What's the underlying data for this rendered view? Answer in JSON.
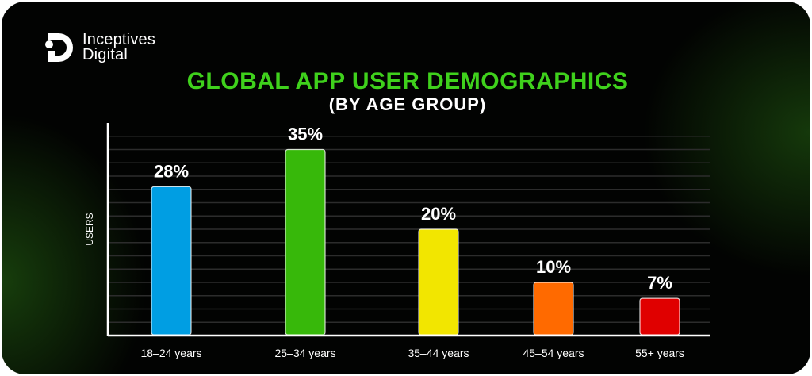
{
  "brand": {
    "logo_text_line1": "Inceptives",
    "logo_text_line2": "Digital"
  },
  "chart_data": {
    "type": "bar",
    "title": "GLOBAL APP USER DEMOGRAPHICS",
    "subtitle": "(BY AGE GROUP)",
    "xlabel": "",
    "ylabel": "USERS",
    "categories": [
      "18–24 years",
      "25–34 years",
      "35–44 years",
      "45–54 years",
      "55+ years"
    ],
    "values": [
      28,
      35,
      20,
      10,
      7
    ],
    "data_labels": [
      "28%",
      "35%",
      "20%",
      "10%",
      "7%"
    ],
    "colors": [
      "#009ee3",
      "#37b80a",
      "#f2e600",
      "#ff6a00",
      "#e00000"
    ],
    "ylim": [
      0,
      40
    ],
    "grid": true,
    "legend": "none"
  }
}
